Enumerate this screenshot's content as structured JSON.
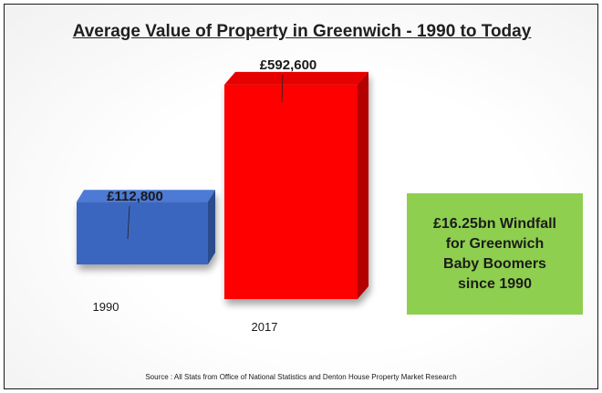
{
  "chart_data": {
    "type": "bar",
    "title": "Average Value of Property in Greenwich - 1990 to Today",
    "categories": [
      "1990",
      "2017"
    ],
    "values": [
      112800,
      592600
    ],
    "value_labels": [
      "£112,800",
      "£592,600"
    ],
    "colors": [
      "#3a66c0",
      "#ff0000"
    ],
    "side_colors": [
      "#2a4b8c",
      "#b30000"
    ],
    "top_colors": [
      "#4e7ad4",
      "#e60000"
    ],
    "xlabel": "",
    "ylabel": "",
    "ylim": [
      0,
      600000
    ],
    "grid": false,
    "legend": "none"
  },
  "callout": {
    "lines": [
      "£16.25bn Windfall",
      "for Greenwich",
      "Baby Boomers",
      "since 1990"
    ],
    "color": "#8fcf4f"
  },
  "source": "Source : All Stats from Office of National Statistics  and Denton House Property Market Research"
}
